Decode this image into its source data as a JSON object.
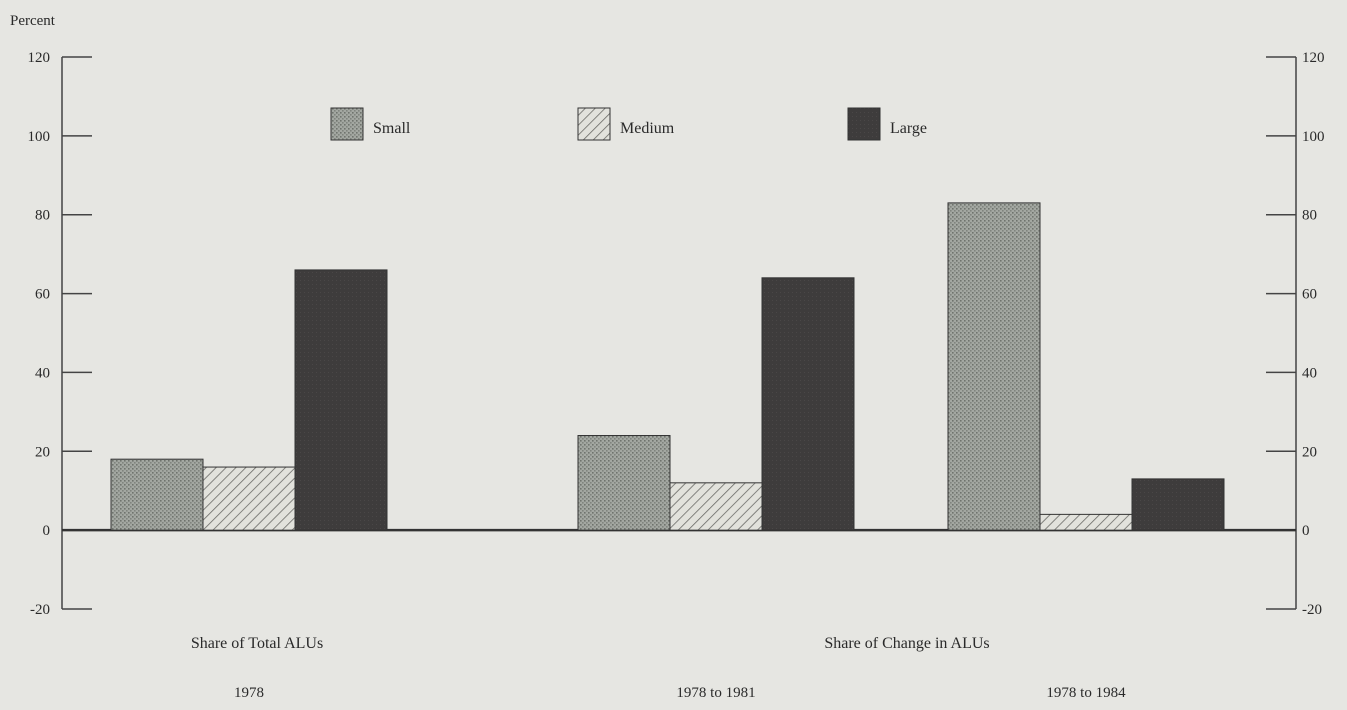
{
  "chart_data": {
    "type": "bar",
    "ylabel": "Percent",
    "ylim": [
      -20,
      120
    ],
    "yticks": [
      -20,
      0,
      20,
      40,
      60,
      80,
      100,
      120
    ],
    "categories": [
      "1978",
      "1978 to 1981",
      "1978 to 1984"
    ],
    "group_labels": [
      "Share of Total ALUs",
      "Share of Change in ALUs"
    ],
    "series": [
      {
        "name": "Small",
        "values": [
          18,
          24,
          83
        ],
        "color": "#9a9e98"
      },
      {
        "name": "Medium",
        "values": [
          16,
          12,
          4
        ],
        "color": "#d2d2cc"
      },
      {
        "name": "Large",
        "values": [
          66,
          64,
          13
        ],
        "color": "#3e3e3e"
      }
    ],
    "legend": "top-center",
    "grid": false,
    "zero_line": true
  }
}
